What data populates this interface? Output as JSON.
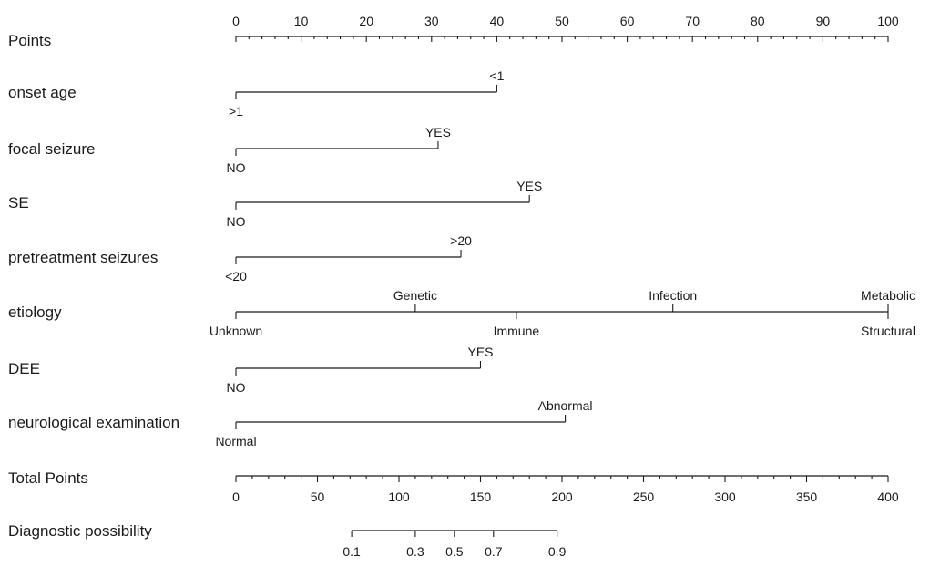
{
  "chart_data": {
    "type": "nomogram",
    "points_scale": {
      "label": "Points",
      "range": [
        0,
        100
      ],
      "tick_labels": [
        "0",
        "10",
        "20",
        "30",
        "40",
        "50",
        "60",
        "70",
        "80",
        "90",
        "100"
      ]
    },
    "predictors": [
      {
        "id": "onset-age",
        "label": "onset age",
        "levels": [
          {
            "label": ">1",
            "points": 0,
            "side": "below"
          },
          {
            "label": "<1",
            "points": 40,
            "side": "above"
          }
        ]
      },
      {
        "id": "focal-seizure",
        "label": "focal seizure",
        "levels": [
          {
            "label": "NO",
            "points": 0,
            "side": "below"
          },
          {
            "label": "YES",
            "points": 31,
            "side": "above"
          }
        ]
      },
      {
        "id": "se",
        "label": "SE",
        "levels": [
          {
            "label": "NO",
            "points": 0,
            "side": "below"
          },
          {
            "label": "YES",
            "points": 45,
            "side": "above"
          }
        ]
      },
      {
        "id": "pretreatment-seizures",
        "label": "pretreatment seizures",
        "levels": [
          {
            "label": "<20",
            "points": 0,
            "side": "below"
          },
          {
            "label": ">20",
            "points": 34.5,
            "side": "above"
          }
        ]
      },
      {
        "id": "etiology",
        "label": "etiology",
        "levels": [
          {
            "label": "Unknown",
            "points": 0,
            "side": "below"
          },
          {
            "label": "Genetic",
            "points": 27.5,
            "side": "above"
          },
          {
            "label": "Immune",
            "points": 43,
            "side": "below"
          },
          {
            "label": "Infection",
            "points": 67,
            "side": "above"
          },
          {
            "label": "Metabolic",
            "points": 100,
            "side": "above"
          },
          {
            "label": "Structural",
            "points": 100,
            "side": "below"
          }
        ]
      },
      {
        "id": "dee",
        "label": "DEE",
        "levels": [
          {
            "label": "NO",
            "points": 0,
            "side": "below"
          },
          {
            "label": "YES",
            "points": 37.5,
            "side": "above"
          }
        ]
      },
      {
        "id": "neurological-examination",
        "label": "neurological examination",
        "levels": [
          {
            "label": "Normal",
            "points": 0,
            "side": "below"
          },
          {
            "label": "Abnormal",
            "points": 50.5,
            "side": "above"
          }
        ]
      }
    ],
    "total_points_scale": {
      "label": "Total Points",
      "range": [
        0,
        400
      ],
      "tick_labels": [
        "0",
        "50",
        "100",
        "150",
        "200",
        "250",
        "300",
        "350",
        "400"
      ]
    },
    "probability_scale": {
      "label": "Diagnostic possibility",
      "ticks": [
        {
          "label": "0.1",
          "total_points": 71
        },
        {
          "label": "0.3",
          "total_points": 110
        },
        {
          "label": "0.5",
          "total_points": 134
        },
        {
          "label": "0.7",
          "total_points": 158
        },
        {
          "label": "0.9",
          "total_points": 197
        }
      ]
    }
  }
}
